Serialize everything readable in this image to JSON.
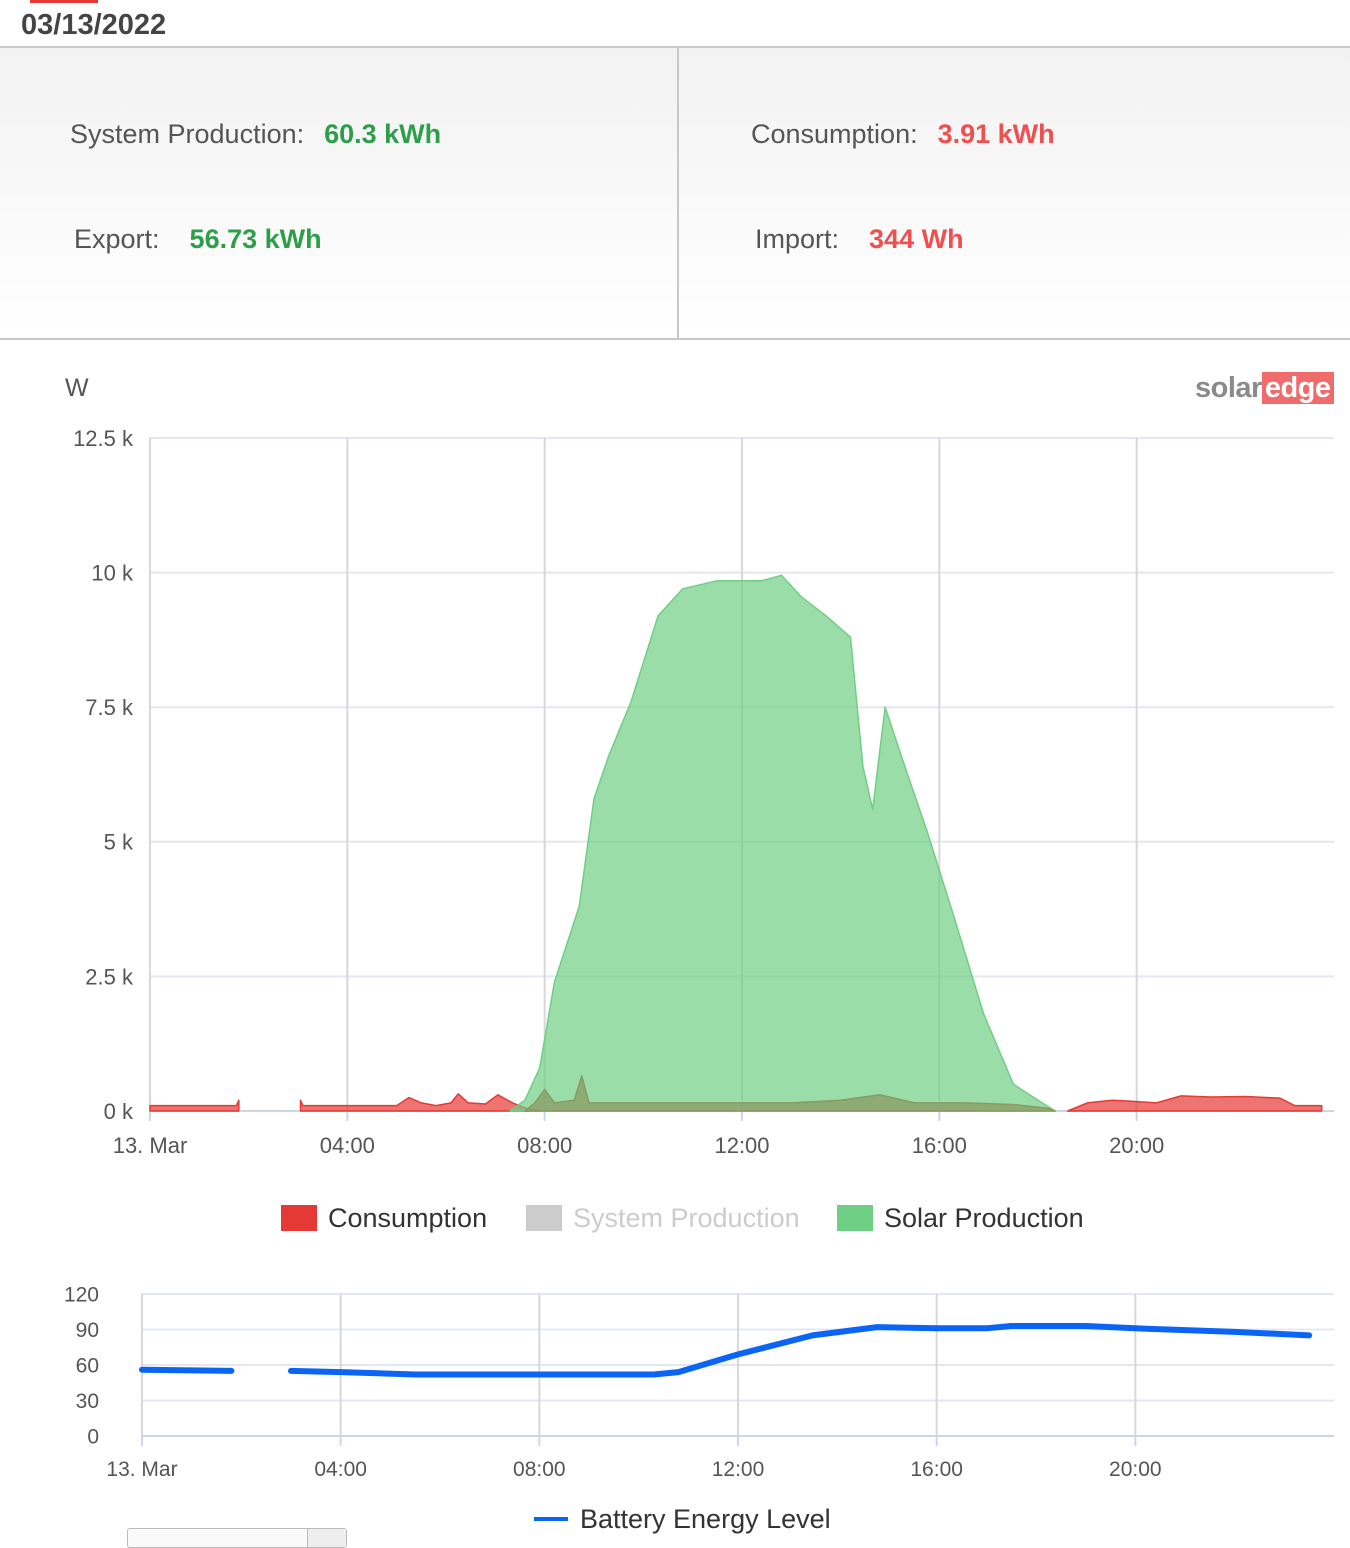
{
  "date": "03/13/2022",
  "summary": {
    "system_production": {
      "label": "System Production:",
      "value": "60.3 kWh"
    },
    "consumption": {
      "label": "Consumption:",
      "value": "3.91 kWh"
    },
    "export": {
      "label": "Export:",
      "value": "56.73 kWh"
    },
    "import": {
      "label": "Import:",
      "value": "344 Wh"
    }
  },
  "logo": {
    "part1": "solar",
    "part2": "edge"
  },
  "colors": {
    "consumption": "#e53935",
    "system_production": "#cccccc",
    "solar_production": "#6fcf85",
    "battery": "#0a64f5",
    "positive": "#2e9e4a",
    "negative": "#ef4f4f"
  },
  "chart_data": [
    {
      "type": "area",
      "ylabel": "W",
      "xlabel": "",
      "x_unit": "hour",
      "xlim": [
        0,
        24
      ],
      "ylim": [
        0,
        12500
      ],
      "yticks": [
        0,
        2500,
        5000,
        7500,
        10000,
        12500
      ],
      "ytick_labels": [
        "0 k",
        "2.5 k",
        "5 k",
        "7.5 k",
        "10 k",
        "12.5 k"
      ],
      "xticks": [
        0,
        4,
        8,
        12,
        16,
        20
      ],
      "xtick_labels": [
        "13. Mar",
        "04:00",
        "08:00",
        "12:00",
        "16:00",
        "20:00"
      ],
      "grid": true,
      "legend_position": "bottom",
      "series": [
        {
          "name": "Consumption",
          "color": "#e53935",
          "segments": [
            [
              [
                0,
                100
              ],
              [
                1.0,
                100
              ],
              [
                1.75,
                100
              ],
              [
                1.8,
                200
              ]
            ],
            [
              [
                3.05,
                200
              ],
              [
                3.1,
                100
              ],
              [
                4.0,
                100
              ],
              [
                5.0,
                100
              ],
              [
                5.25,
                250
              ],
              [
                5.5,
                150
              ],
              [
                5.8,
                100
              ],
              [
                6.1,
                150
              ],
              [
                6.25,
                320
              ],
              [
                6.45,
                150
              ],
              [
                6.8,
                130
              ],
              [
                7.05,
                300
              ],
              [
                7.35,
                150
              ],
              [
                7.6,
                60
              ],
              [
                7.9,
                0
              ]
            ],
            [
              [
                18.6,
                0
              ],
              [
                19.0,
                150
              ],
              [
                19.5,
                200
              ],
              [
                19.9,
                180
              ],
              [
                20.4,
                150
              ],
              [
                20.9,
                280
              ],
              [
                21.5,
                260
              ],
              [
                22.2,
                270
              ],
              [
                22.9,
                240
              ],
              [
                23.2,
                100
              ],
              [
                23.75,
                100
              ]
            ]
          ]
        },
        {
          "name": "System Production",
          "color": "#cccccc",
          "hidden": true,
          "segments": []
        },
        {
          "name": "Solar Production",
          "color": "#6fcf85",
          "segments": [
            [
              [
                7.3,
                0
              ],
              [
                7.6,
                200
              ],
              [
                7.9,
                800
              ],
              [
                8.2,
                2400
              ],
              [
                8.7,
                3800
              ],
              [
                9.0,
                5800
              ],
              [
                9.3,
                6600
              ],
              [
                9.75,
                7600
              ],
              [
                10.3,
                9200
              ],
              [
                10.8,
                9700
              ],
              [
                11.5,
                9850
              ],
              [
                12.0,
                9850
              ],
              [
                12.4,
                9850
              ],
              [
                12.8,
                9950
              ],
              [
                13.2,
                9550
              ],
              [
                13.7,
                9200
              ],
              [
                14.2,
                8800
              ],
              [
                14.45,
                6400
              ],
              [
                14.65,
                5600
              ],
              [
                14.9,
                7500
              ],
              [
                15.3,
                6400
              ],
              [
                15.75,
                5200
              ],
              [
                16.3,
                3600
              ],
              [
                16.9,
                1800
              ],
              [
                17.5,
                500
              ],
              [
                18.0,
                200
              ],
              [
                18.35,
                0
              ]
            ]
          ]
        },
        {
          "name": "Overlap",
          "color": "#8a9a63",
          "legend": false,
          "segments": [
            [
              [
                7.6,
                0
              ],
              [
                7.8,
                150
              ],
              [
                8.0,
                400
              ],
              [
                8.2,
                150
              ],
              [
                8.6,
                200
              ],
              [
                8.75,
                650
              ],
              [
                8.9,
                150
              ],
              [
                10.0,
                150
              ],
              [
                12.0,
                150
              ],
              [
                13.0,
                150
              ],
              [
                14.0,
                200
              ],
              [
                14.8,
                300
              ],
              [
                15.5,
                150
              ],
              [
                16.5,
                150
              ],
              [
                17.5,
                120
              ],
              [
                18.2,
                50
              ],
              [
                18.35,
                0
              ]
            ]
          ]
        }
      ]
    },
    {
      "type": "line",
      "ylabel": "",
      "xlabel": "",
      "xlim": [
        0,
        24
      ],
      "ylim": [
        0,
        120
      ],
      "yticks": [
        0,
        30,
        60,
        90,
        120
      ],
      "ytick_labels": [
        "0",
        "30",
        "60",
        "90",
        "120"
      ],
      "xticks": [
        0,
        4,
        8,
        12,
        16,
        20
      ],
      "xtick_labels": [
        "13. Mar",
        "04:00",
        "08:00",
        "12:00",
        "16:00",
        "20:00"
      ],
      "grid": true,
      "legend_position": "bottom",
      "series": [
        {
          "name": "Battery Energy Level",
          "color": "#0a64f5",
          "segments": [
            [
              [
                0,
                56
              ],
              [
                1.8,
                55
              ]
            ],
            [
              [
                3.0,
                55
              ],
              [
                4.0,
                54
              ],
              [
                5.5,
                52
              ],
              [
                8.0,
                52
              ],
              [
                10.3,
                52
              ],
              [
                10.8,
                54
              ],
              [
                12.0,
                69
              ],
              [
                13.5,
                85
              ],
              [
                14.8,
                92
              ],
              [
                16.0,
                91
              ],
              [
                17.0,
                91
              ],
              [
                17.5,
                93
              ],
              [
                19.0,
                93
              ],
              [
                20.0,
                91
              ],
              [
                22.0,
                88
              ],
              [
                23.5,
                85
              ]
            ]
          ]
        }
      ]
    }
  ]
}
